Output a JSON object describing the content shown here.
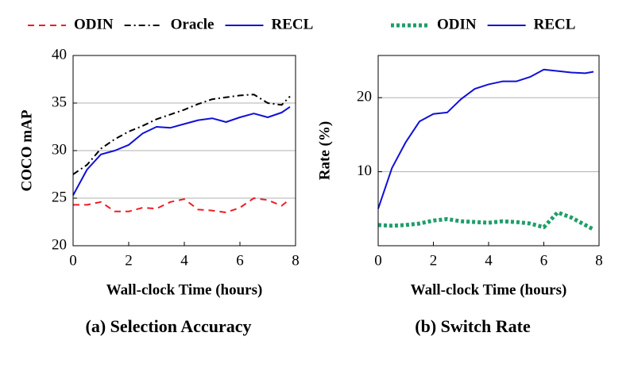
{
  "chart_data": [
    {
      "type": "line",
      "caption": "(a) Selection Accuracy",
      "xlabel": "Wall-clock Time (hours)",
      "ylabel": "COCO mAP",
      "x": [
        0,
        0.5,
        1,
        1.5,
        2,
        2.5,
        3,
        3.5,
        4,
        4.5,
        5,
        5.5,
        6,
        6.5,
        7,
        7.5,
        7.8
      ],
      "series": [
        {
          "name": "ODIN",
          "color": "#ee1c25",
          "style": "dashed",
          "values": [
            24.3,
            24.3,
            24.6,
            23.6,
            23.6,
            24.0,
            23.9,
            24.6,
            24.9,
            23.8,
            23.7,
            23.5,
            24.0,
            25.0,
            24.8,
            24.2,
            24.9
          ]
        },
        {
          "name": "Oracle",
          "color": "#000000",
          "style": "dashdot",
          "values": [
            27.5,
            28.5,
            30.2,
            31.2,
            32.0,
            32.6,
            33.3,
            33.8,
            34.3,
            34.9,
            35.4,
            35.6,
            35.8,
            35.9,
            35.0,
            34.8,
            35.7
          ]
        },
        {
          "name": "RECL",
          "color": "#1010d8",
          "style": "solid",
          "values": [
            25.3,
            28.0,
            29.6,
            30.0,
            30.6,
            31.8,
            32.5,
            32.4,
            32.8,
            33.2,
            33.4,
            33.0,
            33.5,
            33.9,
            33.5,
            34.0,
            34.6
          ]
        }
      ],
      "xlim": [
        0,
        8
      ],
      "xticks": [
        0,
        2,
        4,
        6,
        8
      ],
      "ylim": [
        20,
        40
      ],
      "yticks": [
        20,
        25,
        30,
        35,
        40
      ],
      "grid": true
    },
    {
      "type": "line",
      "caption": "(b) Switch Rate",
      "xlabel": "Wall-clock Time (hours)",
      "ylabel": "Rate (%)",
      "x": [
        0,
        0.5,
        1,
        1.5,
        2,
        2.5,
        3,
        3.5,
        4,
        4.5,
        5,
        5.5,
        6,
        6.5,
        7,
        7.5,
        7.8
      ],
      "series": [
        {
          "name": "ODIN",
          "color": "#1f9e6a",
          "style": "dotted",
          "values": [
            2.8,
            2.7,
            2.8,
            3.0,
            3.4,
            3.6,
            3.3,
            3.2,
            3.1,
            3.3,
            3.2,
            3.0,
            2.5,
            4.5,
            3.8,
            2.8,
            2.2
          ]
        },
        {
          "name": "RECL",
          "color": "#1010d8",
          "style": "solid",
          "values": [
            5.0,
            10.5,
            14.0,
            16.8,
            17.8,
            18.0,
            19.8,
            21.2,
            21.8,
            22.2,
            22.2,
            22.8,
            23.8,
            23.6,
            23.4,
            23.3,
            23.5
          ]
        }
      ],
      "xlim": [
        0,
        8
      ],
      "xticks": [
        0,
        2,
        4,
        6,
        8
      ],
      "ylim": [
        0,
        25.7
      ],
      "yticks": [
        10,
        20
      ],
      "grid": true
    }
  ]
}
